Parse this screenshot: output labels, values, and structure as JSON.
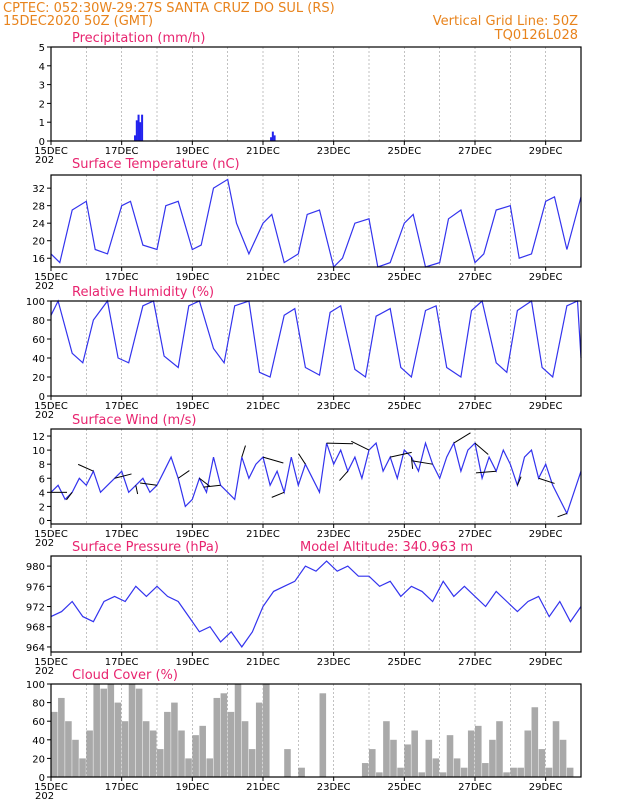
{
  "header": {
    "line1_left": "CPTEC:  052:30W-29:27S  SANTA CRUZ DO SUL (RS)",
    "line2_left": "15DEC2020 50Z (GMT)",
    "line2_right": "Vertical Grid Line: 50Z",
    "line3_right": "TQ0126L028",
    "model_altitude": "Model Altitude: 340.963 m",
    "year_stub": "202"
  },
  "colors": {
    "header": "#e8831c",
    "panel_title": "#e8246f",
    "series_line": "#3333ee",
    "precip_bar": "#2222ee",
    "cloud_bar": "#a9a9a9",
    "wind_arrow": "#000000"
  },
  "x_tick_labels": [
    "15DEC",
    "17DEC",
    "19DEC",
    "21DEC",
    "23DEC",
    "25DEC",
    "27DEC",
    "29DEC"
  ],
  "chart_data": [
    {
      "type": "bar",
      "id": "precip",
      "title": "Precipitation (mm/h)",
      "ylim": [
        0,
        5
      ],
      "yticks": [
        0,
        1,
        2,
        3,
        4,
        5
      ],
      "x_range_days": [
        0,
        15
      ],
      "x": [
        2.35,
        2.4,
        2.45,
        2.5,
        2.55,
        6.2,
        6.25,
        6.3
      ],
      "values": [
        0.3,
        1.1,
        1.4,
        1.0,
        1.4,
        0.2,
        0.5,
        0.3
      ]
    },
    {
      "type": "line",
      "id": "temp",
      "title": "Surface Temperature (nC)",
      "ylim": [
        14,
        35
      ],
      "yticks": [
        16,
        20,
        24,
        28,
        32
      ],
      "x_range_days": [
        0,
        15
      ],
      "x": [
        0.0,
        0.25,
        0.6,
        1.0,
        1.25,
        1.6,
        2.0,
        2.25,
        2.6,
        3.0,
        3.25,
        3.6,
        4.0,
        4.25,
        4.6,
        5.0,
        5.25,
        5.6,
        6.0,
        6.25,
        6.6,
        7.0,
        7.25,
        7.6,
        8.0,
        8.25,
        8.6,
        9.0,
        9.25,
        9.6,
        10.0,
        10.25,
        10.6,
        11.0,
        11.25,
        11.6,
        12.0,
        12.25,
        12.6,
        13.0,
        13.25,
        13.6,
        14.0,
        14.25,
        14.6,
        15.0
      ],
      "values": [
        17,
        15,
        27,
        29,
        18,
        17,
        28,
        29,
        19,
        18,
        28,
        29,
        18,
        19,
        32,
        34,
        24,
        17,
        24,
        26,
        15,
        17,
        26,
        27,
        14,
        16,
        24,
        25,
        14,
        15,
        24,
        26,
        14,
        15,
        25,
        27,
        15,
        17,
        27,
        28,
        16,
        17,
        29,
        30,
        18,
        30
      ]
    },
    {
      "type": "line",
      "id": "rh",
      "title": "Relative Humidity (%)",
      "ylim": [
        0,
        100
      ],
      "yticks": [
        0,
        20,
        40,
        60,
        80,
        100
      ],
      "x_range_days": [
        0,
        15
      ],
      "x": [
        0.0,
        0.2,
        0.6,
        0.9,
        1.2,
        1.6,
        1.9,
        2.2,
        2.6,
        2.9,
        3.2,
        3.6,
        3.9,
        4.2,
        4.6,
        4.9,
        5.2,
        5.6,
        5.9,
        6.2,
        6.6,
        6.9,
        7.2,
        7.6,
        7.9,
        8.2,
        8.6,
        8.9,
        9.2,
        9.6,
        9.9,
        10.2,
        10.6,
        10.9,
        11.2,
        11.6,
        11.9,
        12.2,
        12.6,
        12.9,
        13.2,
        13.6,
        13.9,
        14.2,
        14.6,
        14.9,
        15.0
      ],
      "values": [
        85,
        100,
        45,
        35,
        80,
        100,
        40,
        35,
        95,
        100,
        42,
        30,
        95,
        100,
        50,
        35,
        95,
        100,
        25,
        20,
        85,
        92,
        30,
        22,
        88,
        95,
        28,
        20,
        84,
        92,
        30,
        20,
        90,
        95,
        30,
        20,
        90,
        100,
        35,
        25,
        90,
        100,
        30,
        20,
        95,
        100,
        40
      ]
    },
    {
      "type": "line",
      "id": "wind",
      "title": "Surface Wind (m/s)",
      "ylim": [
        -0.5,
        13
      ],
      "yticks": [
        0,
        2,
        4,
        6,
        8,
        10,
        12
      ],
      "x_range_days": [
        0,
        15
      ],
      "x": [
        0.0,
        0.2,
        0.4,
        0.6,
        0.8,
        1.0,
        1.2,
        1.4,
        1.6,
        1.8,
        2.0,
        2.2,
        2.4,
        2.6,
        2.8,
        3.0,
        3.2,
        3.4,
        3.6,
        3.8,
        4.0,
        4.2,
        4.4,
        4.6,
        4.8,
        5.0,
        5.2,
        5.4,
        5.6,
        5.8,
        6.0,
        6.2,
        6.4,
        6.6,
        6.8,
        7.0,
        7.2,
        7.4,
        7.6,
        7.8,
        8.0,
        8.2,
        8.4,
        8.6,
        8.8,
        9.0,
        9.2,
        9.4,
        9.6,
        9.8,
        10.0,
        10.2,
        10.4,
        10.6,
        10.8,
        11.0,
        11.2,
        11.4,
        11.6,
        11.8,
        12.0,
        12.2,
        12.4,
        12.6,
        12.8,
        13.0,
        13.2,
        13.4,
        13.6,
        13.8,
        14.0,
        14.2,
        14.6,
        15.0
      ],
      "values": [
        4,
        5,
        3,
        4,
        6,
        5,
        7,
        4,
        5,
        6,
        7,
        4,
        5,
        6,
        4,
        5,
        7,
        9,
        6,
        2,
        3,
        6,
        4,
        9,
        5,
        4,
        3,
        9,
        6,
        8,
        9,
        5,
        7,
        4,
        9,
        5,
        8,
        6,
        4,
        11,
        8,
        10,
        7,
        9,
        6,
        10,
        11,
        7,
        9,
        6,
        10,
        9,
        7,
        11,
        8,
        6,
        9,
        11,
        7,
        10,
        11,
        6,
        9,
        7,
        10,
        8,
        5,
        9,
        10,
        6,
        8,
        5,
        1,
        7
      ]
    },
    {
      "type": "line",
      "id": "pressure",
      "title": "Surface Pressure (hPa)",
      "ylim": [
        963,
        982
      ],
      "yticks": [
        964,
        968,
        972,
        976,
        980
      ],
      "x_range_days": [
        0,
        15
      ],
      "x": [
        0.0,
        0.3,
        0.6,
        0.9,
        1.2,
        1.5,
        1.8,
        2.1,
        2.4,
        2.7,
        3.0,
        3.3,
        3.6,
        3.9,
        4.2,
        4.5,
        4.8,
        5.1,
        5.4,
        5.7,
        6.0,
        6.3,
        6.6,
        6.9,
        7.2,
        7.5,
        7.8,
        8.1,
        8.4,
        8.7,
        9.0,
        9.3,
        9.6,
        9.9,
        10.2,
        10.5,
        10.8,
        11.1,
        11.4,
        11.7,
        12.0,
        12.3,
        12.6,
        12.9,
        13.2,
        13.5,
        13.8,
        14.1,
        14.4,
        14.7,
        15.0
      ],
      "values": [
        970,
        971,
        973,
        970,
        969,
        973,
        974,
        973,
        976,
        974,
        976,
        974,
        973,
        970,
        967,
        968,
        965,
        967,
        964,
        967,
        972,
        975,
        976,
        977,
        980,
        979,
        981,
        979,
        980,
        978,
        978,
        976,
        977,
        974,
        976,
        975,
        973,
        977,
        974,
        976,
        974,
        972,
        975,
        973,
        971,
        973,
        974,
        970,
        973,
        969,
        972
      ]
    },
    {
      "type": "bar",
      "id": "cloud",
      "title": "Cloud Cover (%)",
      "ylim": [
        0,
        100
      ],
      "yticks": [
        0,
        20,
        40,
        60,
        80,
        100
      ],
      "x_range_days": [
        0,
        15
      ],
      "x": [
        0.0,
        0.2,
        0.4,
        0.6,
        0.8,
        1.0,
        1.2,
        1.4,
        1.6,
        1.8,
        2.0,
        2.2,
        2.4,
        2.6,
        2.8,
        3.0,
        3.2,
        3.4,
        3.6,
        3.8,
        4.0,
        4.2,
        4.4,
        4.6,
        4.8,
        5.0,
        5.2,
        5.4,
        5.6,
        5.8,
        6.0,
        6.2,
        6.4,
        6.6,
        6.8,
        7.0,
        7.2,
        7.4,
        7.6,
        7.8,
        8.0,
        8.2,
        8.4,
        8.6,
        8.8,
        9.0,
        9.2,
        9.4,
        9.6,
        9.8,
        10.0,
        10.2,
        10.4,
        10.6,
        10.8,
        11.0,
        11.2,
        11.4,
        11.6,
        11.8,
        12.0,
        12.2,
        12.4,
        12.6,
        12.8,
        13.0,
        13.2,
        13.4,
        13.6,
        13.8,
        14.0,
        14.2,
        14.4,
        14.6,
        14.8
      ],
      "values": [
        70,
        85,
        60,
        40,
        20,
        50,
        100,
        95,
        100,
        80,
        60,
        100,
        95,
        60,
        50,
        30,
        70,
        80,
        50,
        20,
        45,
        55,
        20,
        85,
        90,
        70,
        100,
        60,
        30,
        80,
        100,
        0,
        0,
        30,
        0,
        10,
        0,
        0,
        90,
        0,
        0,
        0,
        0,
        0,
        15,
        30,
        5,
        60,
        40,
        10,
        35,
        50,
        5,
        40,
        20,
        5,
        45,
        20,
        10,
        50,
        55,
        15,
        40,
        60,
        5,
        10,
        10,
        50,
        75,
        30,
        10,
        60,
        40,
        10,
        0
      ]
    }
  ]
}
